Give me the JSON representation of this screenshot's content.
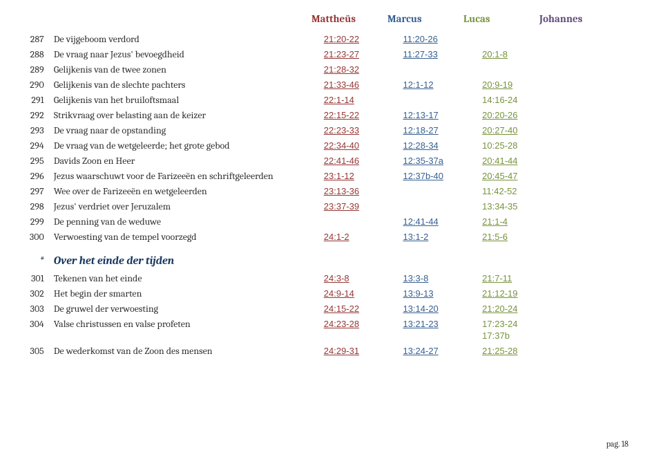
{
  "headers": {
    "mattheus": "Mattheüs",
    "marcus": "Marcus",
    "lucas": "Lucas",
    "johannes": "Johannes"
  },
  "rows": [
    {
      "num": "287",
      "title": "De vijgeboom verdord",
      "mat": "21:20-22",
      "matLink": true,
      "mar": "11:20-26",
      "marLink": true,
      "luc": "",
      "lucLink": false,
      "joh": "",
      "johLink": false
    },
    {
      "num": "288",
      "title": "De vraag naar Jezus' bevoegdheid",
      "mat": "21:23-27",
      "matLink": true,
      "mar": "11:27-33",
      "marLink": true,
      "luc": "20:1-8",
      "lucLink": true,
      "joh": "",
      "johLink": false
    },
    {
      "num": "289",
      "title": "Gelijkenis van de twee zonen",
      "mat": "21:28-32",
      "matLink": true,
      "mar": "",
      "marLink": false,
      "luc": "",
      "lucLink": false,
      "joh": "",
      "johLink": false
    },
    {
      "num": "290",
      "title": "Gelijkenis van de slechte pachters",
      "mat": "21:33-46",
      "matLink": true,
      "mar": "12:1-12",
      "marLink": true,
      "luc": "20:9-19",
      "lucLink": true,
      "joh": "",
      "johLink": false
    },
    {
      "num": "291",
      "title": "Gelijkenis van het bruiloftsmaal",
      "mat": "22:1-14",
      "matLink": true,
      "mar": "",
      "marLink": false,
      "luc": "14:16-24",
      "lucLink": false,
      "joh": "",
      "johLink": false
    },
    {
      "num": "292",
      "title": "Strikvraag over belasting aan de keizer",
      "mat": "22:15-22",
      "matLink": true,
      "mar": "12:13-17",
      "marLink": true,
      "luc": "20:20-26",
      "lucLink": true,
      "joh": "",
      "johLink": false
    },
    {
      "num": "293",
      "title": "De vraag naar de opstanding",
      "mat": "22:23-33",
      "matLink": true,
      "mar": "12:18-27",
      "marLink": true,
      "luc": "20:27-40",
      "lucLink": true,
      "joh": "",
      "johLink": false
    },
    {
      "num": "294",
      "title": "De vraag van de wetgeleerde; het grote gebod",
      "mat": "22:34-40",
      "matLink": true,
      "mar": "12:28-34",
      "marLink": true,
      "luc": "10:25-28",
      "lucLink": false,
      "joh": "",
      "johLink": false
    },
    {
      "num": "295",
      "title": "Davids Zoon en Heer",
      "mat": "22:41-46",
      "matLink": true,
      "mar": "12:35-37a",
      "marLink": true,
      "luc": "20:41-44",
      "lucLink": true,
      "joh": "",
      "johLink": false
    },
    {
      "num": "296",
      "title": "Jezus waarschuwt voor de Farizeeën en schriftgeleerden",
      "mat": "23:1-12",
      "matLink": true,
      "mar": "12:37b-40",
      "marLink": true,
      "luc": "20:45-47",
      "lucLink": true,
      "joh": "",
      "johLink": false
    },
    {
      "num": "297",
      "title": "Wee over de Farizeeën en wetgeleerden",
      "mat": "23:13-36",
      "matLink": true,
      "mar": "",
      "marLink": false,
      "luc": "11:42-52",
      "lucLink": false,
      "joh": "",
      "johLink": false
    },
    {
      "num": "298",
      "title": "Jezus' verdriet over Jeruzalem",
      "mat": "23:37-39",
      "matLink": true,
      "mar": "",
      "marLink": false,
      "luc": "13:34-35",
      "lucLink": false,
      "joh": "",
      "johLink": false
    },
    {
      "num": "299",
      "title": "De penning van de weduwe",
      "mat": "",
      "matLink": false,
      "mar": "12:41-44",
      "marLink": true,
      "luc": "21:1-4",
      "lucLink": true,
      "joh": "",
      "johLink": false
    },
    {
      "num": "300",
      "title": "Verwoesting van de tempel voorzegd",
      "mat": "24:1-2",
      "matLink": true,
      "mar": "13:1-2",
      "marLink": true,
      "luc": "21:5-6",
      "lucLink": true,
      "joh": "",
      "johLink": false
    }
  ],
  "section": {
    "star": "*",
    "title": "Over het einde der tijden"
  },
  "rows2": [
    {
      "num": "301",
      "title": "Tekenen van het einde",
      "mat": "24:3-8",
      "matLink": true,
      "mar": "13:3-8",
      "marLink": true,
      "luc": "21:7-11",
      "lucLink": true,
      "joh": "",
      "johLink": false
    },
    {
      "num": "302",
      "title": "Het begin der smarten",
      "mat": "24:9-14",
      "matLink": true,
      "mar": "13:9-13",
      "marLink": true,
      "luc": "21:12-19",
      "lucLink": true,
      "joh": "",
      "johLink": false
    },
    {
      "num": "303",
      "title": "De gruwel der verwoesting",
      "mat": "24:15-22",
      "matLink": true,
      "mar": "13:14-20",
      "marLink": true,
      "luc": "21:20-24",
      "lucLink": true,
      "joh": "",
      "johLink": false
    },
    {
      "num": "304",
      "title": "Valse christussen en valse profeten",
      "mat": "24:23-28",
      "matLink": true,
      "mar": "13:21-23",
      "marLink": true,
      "luc": "17:23-24\n17:37b",
      "lucLink": false,
      "joh": "",
      "johLink": false
    },
    {
      "num": "305",
      "title": "De wederkomst van de Zoon des mensen",
      "mat": "24:29-31",
      "matLink": true,
      "mar": "13:24-27",
      "marLink": true,
      "luc": "21:25-28",
      "lucLink": true,
      "joh": "",
      "johLink": false
    }
  ],
  "pagenum": "pag.  18"
}
